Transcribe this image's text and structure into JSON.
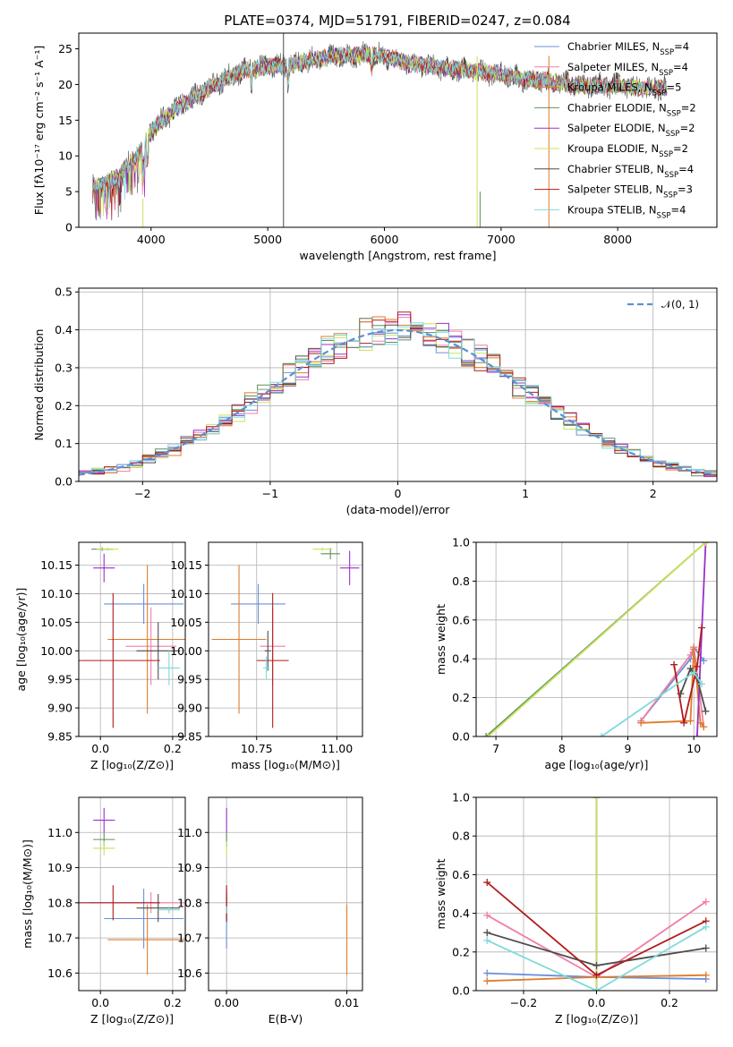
{
  "title": "PLATE=0374, MJD=51791, FIBERID=0247, z=0.084",
  "models": [
    {
      "name": "Chabrier MILES, N",
      "sub": "SSP",
      "suffix": "=4",
      "color": "#6b8fdb"
    },
    {
      "name": "Salpeter MILES, N",
      "sub": "SSP",
      "suffix": "=4",
      "color": "#f07fa6"
    },
    {
      "name": "Kroupa MILES, N",
      "sub": "SSP",
      "suffix": "=5",
      "color": "#e07b2a"
    },
    {
      "name": "Chabrier ELODIE, N",
      "sub": "SSP",
      "suffix": "=2",
      "color": "#5f8f5f"
    },
    {
      "name": "Salpeter ELODIE, N",
      "sub": "SSP",
      "suffix": "=2",
      "color": "#9b30c8"
    },
    {
      "name": "Kroupa ELODIE, N",
      "sub": "SSP",
      "suffix": "=2",
      "color": "#c8e45a"
    },
    {
      "name": "Chabrier STELIB, N",
      "sub": "SSP",
      "suffix": "=4",
      "color": "#4d4d4d"
    },
    {
      "name": "Salpeter STELIB, N",
      "sub": "SSP",
      "suffix": "=3",
      "color": "#b01c1c"
    },
    {
      "name": "Kroupa STELIB, N",
      "sub": "SSP",
      "suffix": "=4",
      "color": "#7fdada"
    }
  ],
  "chart_data": [
    {
      "type": "line",
      "panel": "spectrum",
      "xlabel": "wavelength [Angstrom, rest frame]",
      "ylabel": "Flux [fλ10⁻¹⁷ erg cm⁻² s⁻¹ A⁻¹]",
      "xlim": [
        3380,
        8850
      ],
      "ylim": [
        0,
        27.2
      ],
      "xticks": [
        "4000",
        "5000",
        "6000",
        "7000",
        "8000"
      ],
      "yticks": [
        "0",
        "5",
        "10",
        "15",
        "20",
        "25"
      ],
      "grid": false,
      "legend": "right",
      "continuum": {
        "x": [
          3500,
          3700,
          3900,
          4000,
          4200,
          4400,
          4600,
          4800,
          5000,
          5200,
          5400,
          5600,
          5800,
          6000,
          6200,
          6400,
          6600,
          6800,
          7000,
          7200,
          7400,
          7600,
          7800,
          8000,
          8200,
          8400
        ],
        "y": [
          5.5,
          6.8,
          10.5,
          13.5,
          16.5,
          18.5,
          20.5,
          22,
          22.5,
          22.8,
          23.5,
          24,
          24.2,
          24,
          23,
          22.5,
          22.2,
          21.8,
          21.5,
          20.8,
          20.5,
          20,
          19.8,
          19.8,
          19.5,
          19.5
        ]
      }
    },
    {
      "type": "line",
      "panel": "residual-histogram",
      "xlabel": "(data-model)/error",
      "ylabel": "Normed distribution",
      "xlim": [
        -2.5,
        2.5
      ],
      "ylim": [
        0,
        0.51
      ],
      "xticks": [
        "−2",
        "−1",
        "0",
        "1",
        "2"
      ],
      "yticks": [
        "0.0",
        "0.1",
        "0.2",
        "0.3",
        "0.4",
        "0.5"
      ],
      "grid": true,
      "legend": "top-right",
      "reference": {
        "name": "𝒩(0, 1)",
        "color": "#5b8fd6"
      }
    },
    {
      "type": "scatter",
      "panel": "age-vs-Z",
      "xlabel": "Z [log₁₀(Z/Z⊙)]",
      "ylabel": "age  [log₁₀(age/yr)]",
      "xlim": [
        -0.06,
        0.235
      ],
      "ylim": [
        9.85,
        10.19
      ],
      "xticks": [
        "0.0",
        "0.2"
      ],
      "yticks": [
        "9.85",
        "9.90",
        "9.95",
        "10.00",
        "10.05",
        "10.10",
        "10.15"
      ],
      "grid": true,
      "points": [
        {
          "x": 0.12,
          "xerr": 0.11,
          "y": 10.082,
          "yerr": 0.035
        },
        {
          "x": 0.14,
          "xerr": 0.07,
          "y": 10.008,
          "yerr": 0.068
        },
        {
          "x": 0.13,
          "xerr": 0.11,
          "y": 10.02,
          "yerr": 0.13
        },
        {
          "x": 0.005,
          "xerr": 0.03,
          "y": 10.178,
          "yerr": 0.003
        },
        {
          "x": 0.01,
          "xerr": 0.03,
          "y": 10.145,
          "yerr": 0.025
        },
        {
          "x": 0.02,
          "xerr": 0.03,
          "y": 10.178,
          "yerr": 0.003
        },
        {
          "x": 0.16,
          "xerr": 0.06,
          "y": 10.0,
          "yerr": 0.05
        },
        {
          "x": 0.035,
          "xerr": 0.13,
          "y": 9.983,
          "yerr": 0.118
        },
        {
          "x": 0.19,
          "xerr": 0.03,
          "y": 9.97,
          "yerr": 0.03
        }
      ]
    },
    {
      "type": "scatter",
      "panel": "age-vs-mass",
      "xlabel": "mass [log₁₀(M/M⊙)]",
      "ylabel": "",
      "xlim": [
        10.6,
        11.08
      ],
      "ylim": [
        9.85,
        10.19
      ],
      "xticks": [
        "10.75",
        "11.00"
      ],
      "yticks": [
        "9.85",
        "9.90",
        "9.95",
        "10.00",
        "10.05",
        "10.10",
        "10.15"
      ],
      "grid": true,
      "points": [
        {
          "x": 10.755,
          "xerr": 0.085,
          "y": 10.082,
          "yerr": 0.035
        },
        {
          "x": 10.8,
          "xerr": 0.04,
          "y": 10.008,
          "yerr": 0.068
        },
        {
          "x": 10.695,
          "xerr": 0.085,
          "y": 10.02,
          "yerr": 0.13
        },
        {
          "x": 10.98,
          "xerr": 0.03,
          "y": 10.17,
          "yerr": 0.01
        },
        {
          "x": 11.04,
          "xerr": 0.03,
          "y": 10.145,
          "yerr": 0.03
        },
        {
          "x": 10.955,
          "xerr": 0.03,
          "y": 10.178,
          "yerr": 0.003
        },
        {
          "x": 10.785,
          "xerr": 0.01,
          "y": 10.0,
          "yerr": 0.035
        },
        {
          "x": 10.8,
          "xerr": 0.05,
          "y": 9.983,
          "yerr": 0.118
        },
        {
          "x": 10.78,
          "xerr": 0.01,
          "y": 9.97,
          "yerr": 0.02
        }
      ]
    },
    {
      "type": "line",
      "panel": "mass-weight-vs-age",
      "xlabel": "age  [log₁₀(age/yr)]",
      "ylabel": "mass weight",
      "xlim": [
        6.7,
        10.35
      ],
      "ylim": [
        0,
        1.0
      ],
      "xticks": [
        "7",
        "8",
        "9",
        "10"
      ],
      "yticks": [
        "0.0",
        "0.2",
        "0.4",
        "0.6",
        "0.8",
        "1.0"
      ],
      "grid": true,
      "series": [
        {
          "x": [
            9.2,
            9.95,
            10.0,
            10.15
          ],
          "y": [
            0.08,
            0.4,
            0.46,
            0.39
          ]
        },
        {
          "x": [
            9.2,
            9.95,
            10.0,
            10.15
          ],
          "y": [
            0.08,
            0.42,
            0.46,
            0.05
          ]
        },
        {
          "x": [
            9.2,
            9.95,
            10.0,
            10.1,
            10.15
          ],
          "y": [
            0.07,
            0.08,
            0.45,
            0.07,
            0.05
          ]
        },
        {
          "x": [
            6.85,
            10.18
          ],
          "y": [
            0.0,
            1.0
          ]
        },
        {
          "x": [
            10.05,
            10.18
          ],
          "y": [
            0.0,
            1.0
          ]
        },
        {
          "x": [
            6.88,
            10.18
          ],
          "y": [
            0.0,
            1.0
          ]
        },
        {
          "x": [
            9.8,
            9.95,
            10.05,
            10.18
          ],
          "y": [
            0.22,
            0.35,
            0.3,
            0.13
          ]
        },
        {
          "x": [
            9.7,
            9.85,
            10.05,
            10.12
          ],
          "y": [
            0.37,
            0.07,
            0.36,
            0.56
          ]
        },
        {
          "x": [
            8.6,
            10.0,
            10.12
          ],
          "y": [
            0.0,
            0.33,
            0.27
          ]
        }
      ]
    },
    {
      "type": "scatter",
      "panel": "mass-vs-Z",
      "xlabel": "Z [log₁₀(Z/Z⊙)]",
      "ylabel": "mass [log₁₀(M/M⊙)]",
      "xlim": [
        -0.06,
        0.235
      ],
      "ylim": [
        10.55,
        11.1
      ],
      "xticks": [
        "0.0",
        "0.2"
      ],
      "yticks": [
        "10.6",
        "10.7",
        "10.8",
        "10.9",
        "11.0"
      ],
      "grid": true,
      "points": [
        {
          "x": 0.12,
          "xerr": 0.11,
          "y": 10.755,
          "yerr": 0.085
        },
        {
          "x": 0.14,
          "xerr": 0.17,
          "y": 10.8,
          "yerr": 0.03
        },
        {
          "x": 0.13,
          "xerr": 0.11,
          "y": 10.695,
          "yerr": 0.1
        },
        {
          "x": 0.01,
          "xerr": 0.03,
          "y": 10.98,
          "yerr": 0.02
        },
        {
          "x": 0.01,
          "xerr": 0.03,
          "y": 11.035,
          "yerr": 0.035
        },
        {
          "x": 0.01,
          "xerr": 0.03,
          "y": 10.955,
          "yerr": 0.02
        },
        {
          "x": 0.16,
          "xerr": 0.06,
          "y": 10.785,
          "yerr": 0.04
        },
        {
          "x": 0.035,
          "xerr": 0.13,
          "y": 10.8,
          "yerr": 0.05
        },
        {
          "x": 0.19,
          "xerr": 0.03,
          "y": 10.78,
          "yerr": 0.01
        }
      ]
    },
    {
      "type": "scatter",
      "panel": "mass-vs-EBV",
      "xlabel": "E(B-V)",
      "ylabel": "",
      "xlim": [
        -0.0015,
        0.0113
      ],
      "ylim": [
        10.55,
        11.1
      ],
      "xticks": [
        "0.00",
        "0.01"
      ],
      "yticks": [
        "10.6",
        "10.7",
        "10.8",
        "10.9",
        "11.0"
      ],
      "grid": true,
      "points": [
        {
          "x": 0.0,
          "y": 10.755,
          "yerr": 0.085
        },
        {
          "x": 0.0,
          "y": 10.8,
          "yerr": 0.03
        },
        {
          "x": 0.01,
          "y": 10.695,
          "yerr": 0.1
        },
        {
          "x": 0.0,
          "y": 10.98,
          "yerr": 0.02
        },
        {
          "x": 0.0,
          "y": 11.035,
          "yerr": 0.035
        },
        {
          "x": 0.0,
          "y": 10.955,
          "yerr": 0.02
        },
        {
          "x": 0.0,
          "y": 10.785,
          "yerr": 0.04
        },
        {
          "x": 0.0,
          "y": 10.8,
          "yerr": 0.05
        },
        {
          "x": 0.0,
          "y": 10.78,
          "yerr": 0.01
        }
      ]
    },
    {
      "type": "line",
      "panel": "mass-weight-vs-Z",
      "xlabel": "Z [log₁₀(Z/Z⊙)]",
      "ylabel": "mass weight",
      "xlim": [
        -0.33,
        0.33
      ],
      "ylim": [
        0,
        1.0
      ],
      "xticks": [
        "−0.2",
        "0.0",
        "0.2"
      ],
      "yticks": [
        "0.0",
        "0.2",
        "0.4",
        "0.6",
        "0.8",
        "1.0"
      ],
      "grid": true,
      "series": [
        {
          "x": [
            -0.3,
            0.0,
            0.3
          ],
          "y": [
            0.09,
            0.07,
            0.06
          ]
        },
        {
          "x": [
            -0.3,
            0.0,
            0.3
          ],
          "y": [
            0.39,
            0.07,
            0.46
          ]
        },
        {
          "x": [
            -0.3,
            0.0,
            0.3
          ],
          "y": [
            0.05,
            0.07,
            0.08
          ]
        },
        {
          "x": [
            0.0,
            0.0
          ],
          "y": [
            0.0,
            1.0
          ]
        },
        {
          "x": [
            0.0,
            0.0
          ],
          "y": [
            0.0,
            1.0
          ]
        },
        {
          "x": [
            0.0,
            0.0
          ],
          "y": [
            0.0,
            1.0
          ]
        },
        {
          "x": [
            -0.3,
            0.0,
            0.3
          ],
          "y": [
            0.3,
            0.13,
            0.22
          ]
        },
        {
          "x": [
            -0.3,
            0.0,
            0.3
          ],
          "y": [
            0.56,
            0.08,
            0.36
          ]
        },
        {
          "x": [
            -0.3,
            0.0,
            0.3
          ],
          "y": [
            0.26,
            0.0,
            0.33
          ]
        }
      ]
    }
  ]
}
